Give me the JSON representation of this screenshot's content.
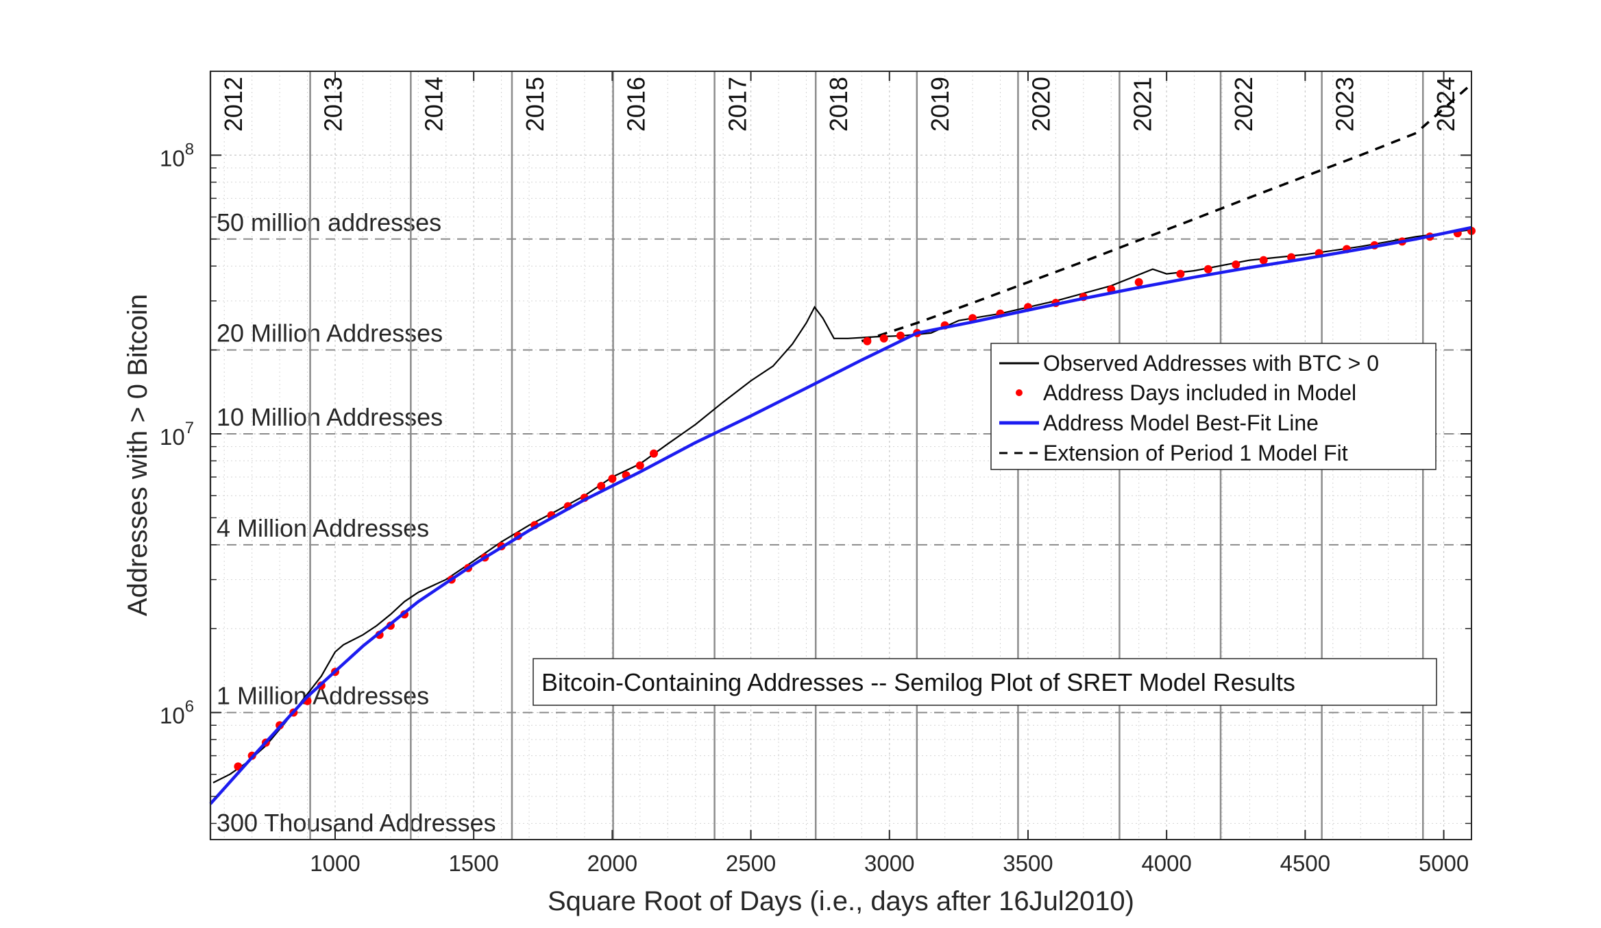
{
  "chart_data": {
    "type": "line",
    "title": "Bitcoin-Containing Addresses -- Semilog Plot of SRET Model Results",
    "xlabel": "Square Root of Days (i.e., days after 16Jul2010)",
    "ylabel": "Addresses with > 0 Bitcoin",
    "xlim": [
      550,
      5100
    ],
    "ylim": [
      350000,
      200000000
    ],
    "yscale": "log",
    "grid": "on",
    "legend_position": "right-center",
    "x_ticks": [
      "1000",
      "1500",
      "2000",
      "2500",
      "3000",
      "3500",
      "4000",
      "4500",
      "5000"
    ],
    "y_ticks": [
      {
        "value": 1000000,
        "base": "10",
        "exp": "6"
      },
      {
        "value": 10000000,
        "base": "10",
        "exp": "7"
      },
      {
        "value": 100000000,
        "base": "10",
        "exp": "8"
      }
    ],
    "year_markers": [
      {
        "label": "2012",
        "x": 550
      },
      {
        "label": "2013",
        "x": 910
      },
      {
        "label": "2014",
        "x": 1273
      },
      {
        "label": "2015",
        "x": 1638
      },
      {
        "label": "2016",
        "x": 2003
      },
      {
        "label": "2017",
        "x": 2369
      },
      {
        "label": "2018",
        "x": 2734
      },
      {
        "label": "2019",
        "x": 3099
      },
      {
        "label": "2020",
        "x": 3464
      },
      {
        "label": "2021",
        "x": 3830
      },
      {
        "label": "2022",
        "x": 4195
      },
      {
        "label": "2023",
        "x": 4560
      },
      {
        "label": "2024",
        "x": 4925
      }
    ],
    "reference_lines": [
      {
        "label": "50 million addresses",
        "value": 50000000
      },
      {
        "label": "20 Million Addresses",
        "value": 20000000
      },
      {
        "label": "10 Million Addresses",
        "value": 10000000
      },
      {
        "label": "4 Million Addresses",
        "value": 4000000
      },
      {
        "label": "1 Million Addresses",
        "value": 1000000
      },
      {
        "label": "300 Thousand Addresses",
        "value": 300000
      }
    ],
    "series": [
      {
        "name": "Observed Addresses with BTC > 0",
        "style": "solid",
        "color": "#000000",
        "x": [
          560,
          620,
          680,
          750,
          820,
          880,
          950,
          1000,
          1030,
          1100,
          1150,
          1200,
          1250,
          1300,
          1400,
          1500,
          1600,
          1700,
          1800,
          1900,
          2000,
          2100,
          2200,
          2300,
          2400,
          2500,
          2580,
          2650,
          2700,
          2730,
          2760,
          2800,
          2850,
          2950,
          3050,
          3150,
          3250,
          3400,
          3600,
          3800,
          3950,
          4000,
          4100,
          4300,
          4500,
          4700,
          4900,
          5100
        ],
        "y": [
          560000,
          600000,
          660000,
          760000,
          920000,
          1100000,
          1350000,
          1650000,
          1750000,
          1900000,
          2050000,
          2250000,
          2500000,
          2700000,
          3000000,
          3500000,
          4100000,
          4700000,
          5300000,
          6000000,
          7000000,
          7800000,
          9200000,
          10800000,
          13000000,
          15500000,
          17500000,
          21000000,
          25000000,
          28500000,
          26000000,
          22000000,
          22000000,
          22300000,
          22500000,
          23000000,
          25500000,
          27000000,
          30000000,
          34000000,
          39000000,
          37500000,
          38500000,
          42000000,
          44000000,
          47000000,
          51000000,
          54000000
        ]
      },
      {
        "name": "Address Days included in Model",
        "style": "markers",
        "color": "#ff0000",
        "x": [
          650,
          700,
          750,
          800,
          850,
          900,
          950,
          1000,
          1160,
          1200,
          1250,
          1420,
          1480,
          1540,
          1600,
          1660,
          1720,
          1780,
          1840,
          1900,
          1960,
          2000,
          2050,
          2100,
          2150,
          2920,
          2980,
          3040,
          3100,
          3200,
          3300,
          3400,
          3500,
          3600,
          3700,
          3800,
          3900,
          4050,
          4150,
          4250,
          4350,
          4450,
          4550,
          4650,
          4750,
          4850,
          4950,
          5050,
          5100
        ],
        "y": [
          640000,
          700000,
          780000,
          900000,
          1000000,
          1100000,
          1250000,
          1400000,
          1900000,
          2050000,
          2250000,
          3000000,
          3300000,
          3600000,
          3950000,
          4300000,
          4700000,
          5100000,
          5500000,
          5900000,
          6500000,
          6900000,
          7100000,
          7700000,
          8500000,
          21500000,
          22000000,
          22500000,
          23000000,
          24500000,
          26000000,
          27000000,
          28500000,
          29500000,
          31000000,
          33000000,
          35000000,
          37500000,
          39000000,
          40500000,
          42000000,
          43000000,
          44500000,
          46000000,
          47500000,
          49000000,
          51000000,
          52500000,
          53500000
        ]
      },
      {
        "name": "Address Model Best-Fit Line",
        "style": "solid",
        "color": "#1c1cf0",
        "x": [
          550,
          700,
          900,
          1100,
          1300,
          1500,
          1700,
          1900,
          2100,
          2300,
          2500,
          2700,
          2900,
          3100,
          3300,
          3500,
          3700,
          3900,
          4100,
          4300,
          4500,
          4700,
          4900,
          5100
        ],
        "y": [
          470000,
          690000,
          1140000,
          1730000,
          2500000,
          3400000,
          4500000,
          5800000,
          7300000,
          9300000,
          11600000,
          14600000,
          18400000,
          23000000,
          25200000,
          27800000,
          30600000,
          33500000,
          36500000,
          39500000,
          42500000,
          46000000,
          50000000,
          55000000
        ]
      },
      {
        "name": "Extension of Period 1 Model Fit",
        "style": "dashed",
        "color": "#000000",
        "x": [
          2900,
          3100,
          3300,
          3500,
          3700,
          3900,
          4100,
          4300,
          4500,
          4700,
          4900,
          5100
        ],
        "y": [
          21500000,
          25000000,
          29500000,
          35000000,
          41500000,
          49500000,
          59000000,
          70500000,
          84000000,
          100000000,
          120000000,
          180000000
        ]
      }
    ]
  }
}
